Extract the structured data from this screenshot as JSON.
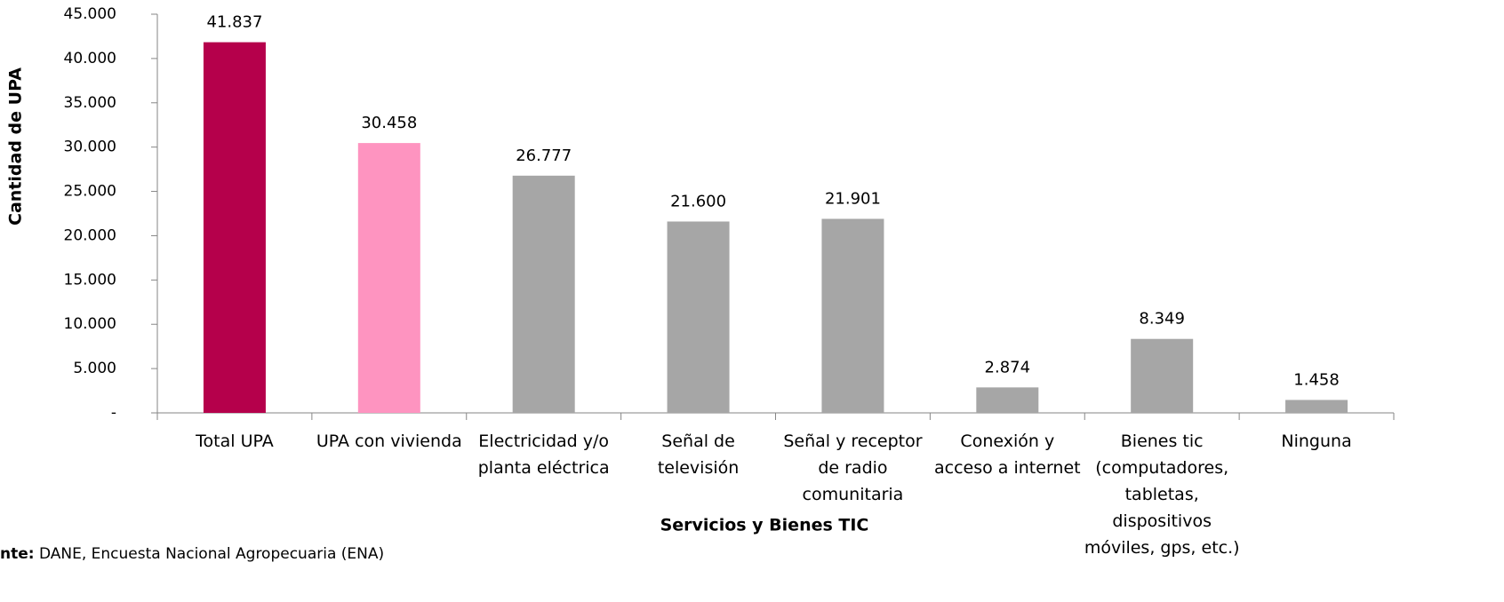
{
  "chart_data": {
    "type": "bar",
    "y_label": "Cantidad de UPA",
    "x_label": "Servicios y Bienes TIC",
    "categories": [
      "Total UPA",
      "UPA con vivienda",
      "Electricidad y/o planta eléctrica",
      "Señal de televisión",
      "Señal y receptor de radio comunitaria",
      "Conexión y acceso a internet",
      "Bienes tic (computadores, tabletas, dispositivos móviles, gps, etc.)",
      "Ninguna"
    ],
    "values": [
      41837,
      30458,
      26777,
      21600,
      21901,
      2874,
      8349,
      1458
    ],
    "value_labels": [
      "41.837",
      "30.458",
      "26.777",
      "21.600",
      "21.901",
      "2.874",
      "8.349",
      "1.458"
    ],
    "colors": [
      "#b5004b",
      "#fe94c0",
      "#a6a6a6",
      "#a6a6a6",
      "#a6a6a6",
      "#a6a6a6",
      "#a6a6a6",
      "#a6a6a6"
    ],
    "ylim": [
      0,
      45000
    ],
    "yticks": [
      {
        "value": 0,
        "label": "-"
      },
      {
        "value": 5000,
        "label": "5.000"
      },
      {
        "value": 10000,
        "label": "10.000"
      },
      {
        "value": 15000,
        "label": "15.000"
      },
      {
        "value": 20000,
        "label": "20.000"
      },
      {
        "value": 25000,
        "label": "25.000"
      },
      {
        "value": 30000,
        "label": "30.000"
      },
      {
        "value": 35000,
        "label": "35.000"
      },
      {
        "value": 40000,
        "label": "40.000"
      },
      {
        "value": 45000,
        "label": "45.000"
      }
    ],
    "grid": false,
    "source_label": "nte:",
    "source": "DANE, Encuesta Nacional Agropecuaria (ENA)"
  }
}
